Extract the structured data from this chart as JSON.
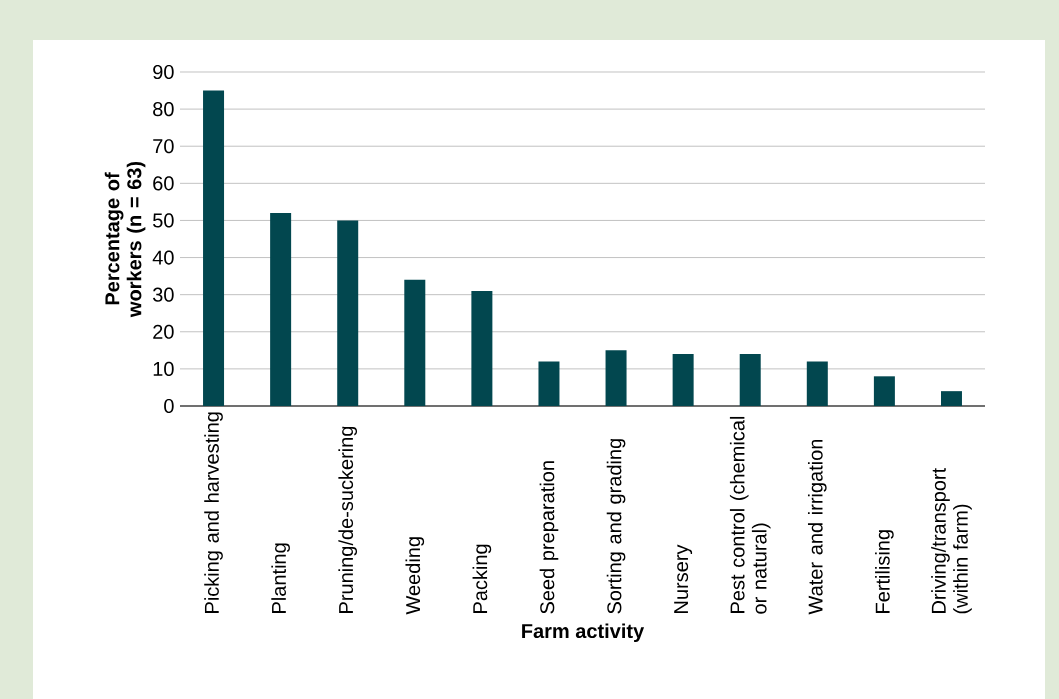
{
  "chart_data": {
    "type": "bar",
    "xlabel": "Farm activity",
    "ylabel": "Percentage of workers (n = 63)",
    "categories": [
      "Picking and harvesting",
      "Planting",
      "Pruning/de-suckering",
      "Weeding",
      "Packing",
      "Seed preparation",
      "Sorting and grading",
      "Nursery",
      "Pest control (chemical or natural)",
      "Water and irrigation",
      "Fertilising",
      "Driving/transport (within farm)"
    ],
    "values": [
      85,
      52,
      50,
      34,
      31,
      12,
      15,
      14,
      14,
      12,
      8,
      4
    ],
    "color": "#02474f",
    "ylim": [
      0,
      90
    ],
    "yticks": [
      0,
      10,
      20,
      30,
      40,
      50,
      60,
      70,
      80,
      90
    ],
    "grid": "y"
  }
}
